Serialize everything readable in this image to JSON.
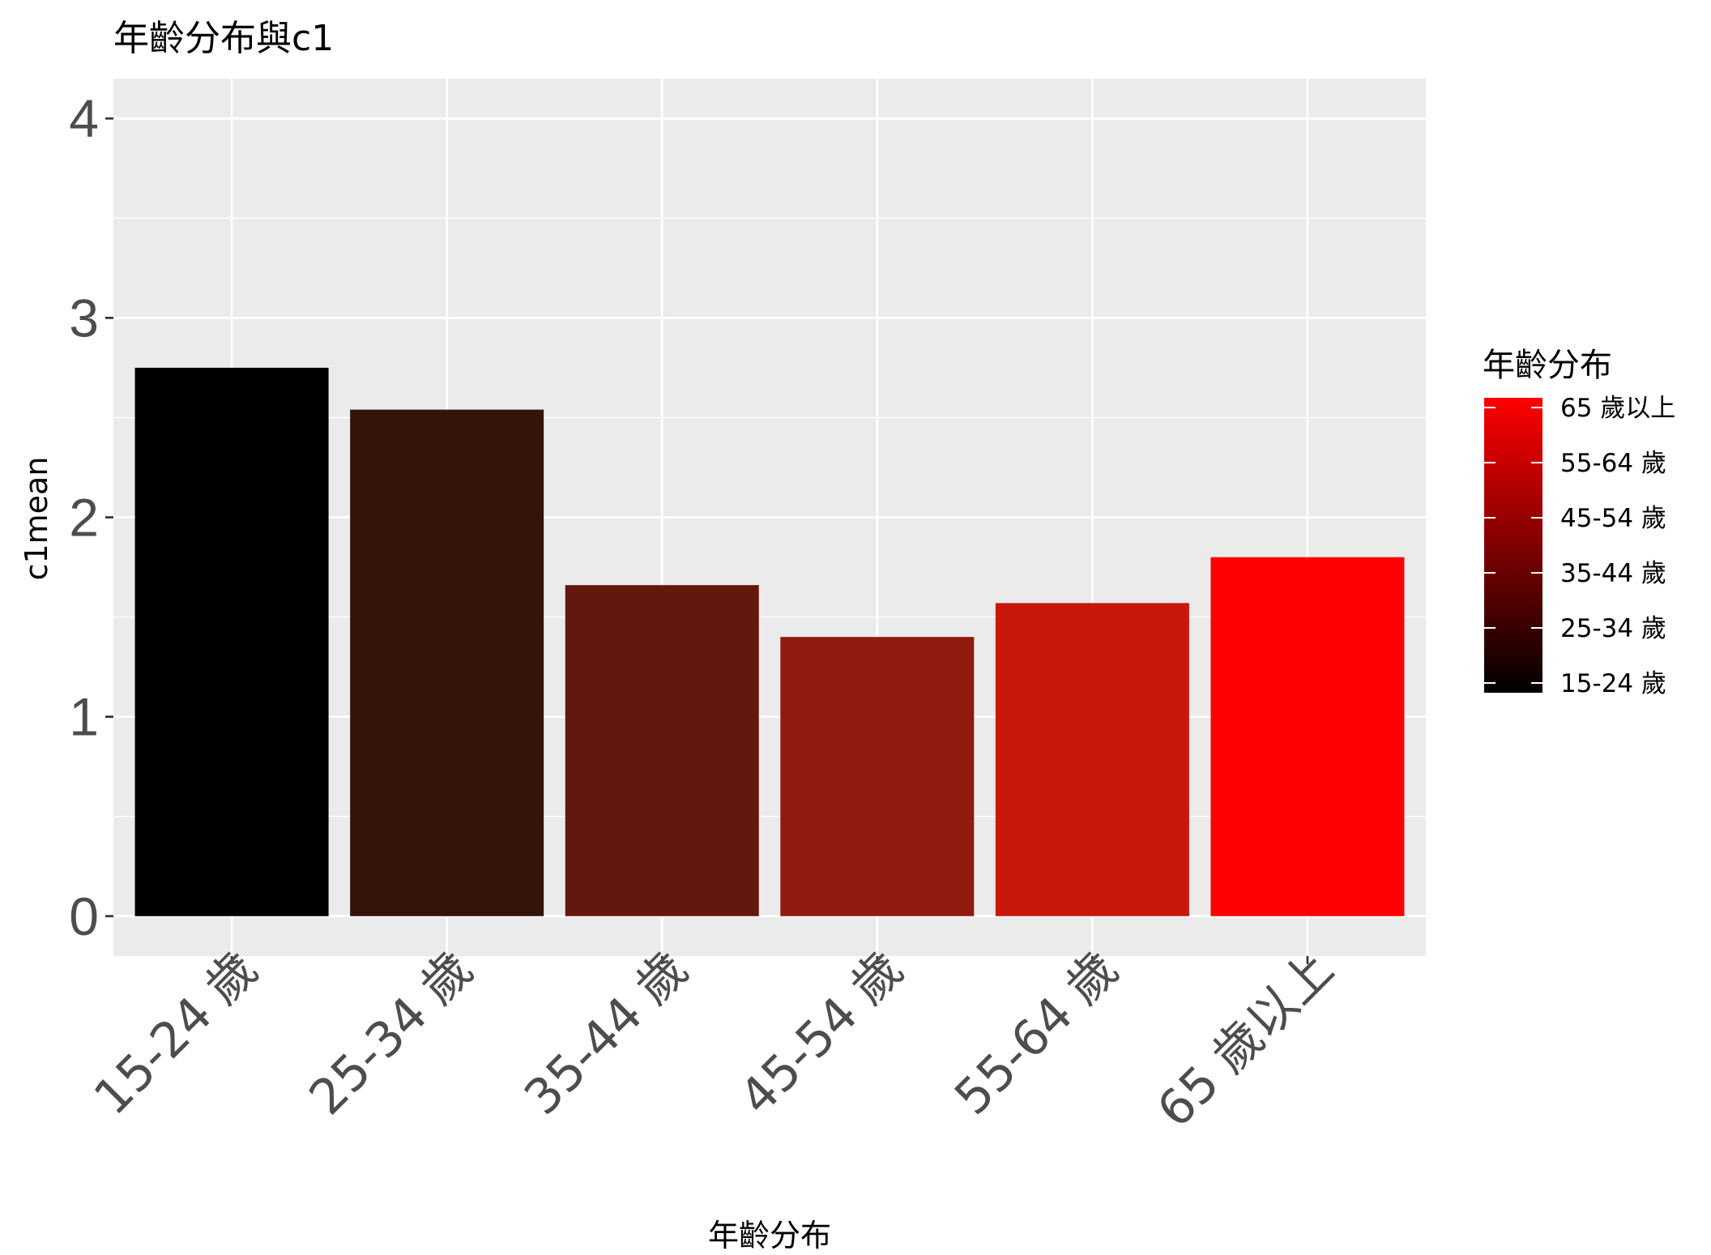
{
  "chart_data": {
    "type": "bar",
    "title": "年齡分布與c1",
    "xlabel": "年齡分布",
    "ylabel": "c1mean",
    "categories": [
      "15-24 歲",
      "25-34 歲",
      "35-44 歲",
      "45-54 歲",
      "55-64 歲",
      "65 歲以上"
    ],
    "values": [
      2.75,
      2.54,
      1.66,
      1.4,
      1.57,
      1.8
    ],
    "colors": [
      "#000000",
      "#351308",
      "#64170d",
      "#901a0e",
      "#c8180a",
      "#ff0000"
    ],
    "ylim": [
      -0.2,
      4.2
    ],
    "yticks": [
      0,
      1,
      2,
      3,
      4
    ],
    "grid": true,
    "panel_background": "#ebebeb",
    "legend": {
      "title": "年齡分布",
      "position": "right",
      "labels": [
        "65 歲以上",
        "55-64 歲",
        "45-54 歲",
        "35-44 歲",
        "25-34 歲",
        "15-24 歲"
      ],
      "gradient": [
        "#ff0000",
        "#000000"
      ]
    }
  }
}
